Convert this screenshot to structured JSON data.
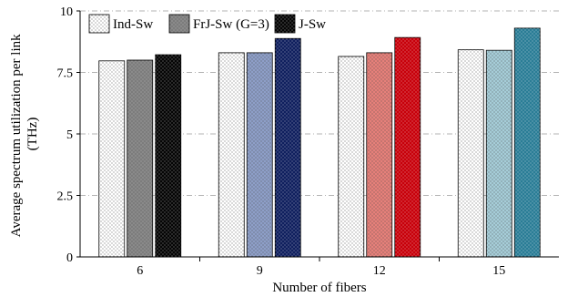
{
  "chart_data": {
    "type": "bar",
    "title": "",
    "xlabel": "Number of fibers",
    "ylabel": "Average spectrum utilization per link (THz)",
    "ylabel_lines": [
      "Average spectrum utilization per link",
      "(THz)"
    ],
    "categories": [
      "6",
      "9",
      "12",
      "15"
    ],
    "ylim": [
      0,
      10
    ],
    "yticks": [
      "0",
      "2.5",
      "5",
      "7.5",
      "10"
    ],
    "ytick_values": [
      0,
      2.5,
      5,
      7.5,
      10
    ],
    "grid": true,
    "legend_position": "top-left",
    "series": [
      {
        "name": "Ind-Sw",
        "values": [
          7.97,
          8.3,
          8.15,
          8.42
        ]
      },
      {
        "name": "FrJ-Sw (G=3)",
        "values": [
          8.0,
          8.3,
          8.3,
          8.4
        ]
      },
      {
        "name": "J-Sw",
        "values": [
          8.22,
          8.88,
          8.92,
          9.3
        ]
      }
    ],
    "colors": {
      "6": [
        "#ffffff",
        "#8a8a8a",
        "#050505"
      ],
      "9": [
        "#ffffff",
        "#8e9fc8",
        "#0f1f5e"
      ],
      "12": [
        "#ffffff",
        "#e6807a",
        "#c8000a"
      ],
      "15": [
        "#ffffff",
        "#a6cdd8",
        "#2a7d96"
      ]
    },
    "legend_colors": [
      "#ffffff",
      "#8a8a8a",
      "#050505"
    ]
  }
}
